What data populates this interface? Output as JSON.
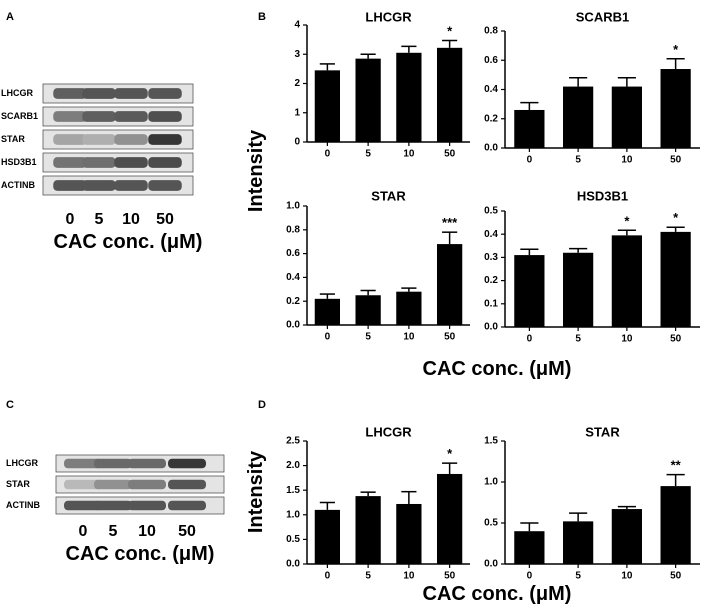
{
  "panels": {
    "A": "A",
    "B": "B",
    "C": "C",
    "D": "D"
  },
  "blots": [
    {
      "lanes": [
        "0",
        "5",
        "10",
        "50"
      ],
      "xlabel": "CAC conc. (μM)",
      "rows": [
        {
          "label": "LHCGR",
          "intensity": [
            0.7,
            0.75,
            0.75,
            0.75
          ]
        },
        {
          "label": "SCARB1",
          "intensity": [
            0.55,
            0.7,
            0.72,
            0.78
          ]
        },
        {
          "label": "STAR",
          "intensity": [
            0.35,
            0.3,
            0.45,
            0.9
          ]
        },
        {
          "label": "HSD3B1",
          "intensity": [
            0.6,
            0.62,
            0.78,
            0.8
          ]
        },
        {
          "label": "ACTINB",
          "intensity": [
            0.75,
            0.75,
            0.75,
            0.75
          ]
        }
      ]
    },
    {
      "lanes": [
        "0",
        "5",
        "10",
        "50"
      ],
      "xlabel": "CAC conc. (μM)",
      "rows": [
        {
          "label": "LHCGR",
          "intensity": [
            0.55,
            0.65,
            0.65,
            0.9
          ]
        },
        {
          "label": "STAR",
          "intensity": [
            0.25,
            0.45,
            0.55,
            0.75
          ]
        },
        {
          "label": "ACTINB",
          "intensity": [
            0.75,
            0.75,
            0.75,
            0.75
          ]
        }
      ]
    }
  ],
  "shared_labels": {
    "ylabel_top": "Intensity",
    "ylabel_bottom": "Intensity",
    "xlabel_top": "CAC conc. (μM)",
    "xlabel_bottom": "CAC conc. (μM)"
  },
  "chart_data": [
    {
      "type": "bar",
      "title": "LHCGR",
      "categories": [
        "0",
        "5",
        "10",
        "50"
      ],
      "values": [
        2.45,
        2.85,
        3.05,
        3.22
      ],
      "errors": [
        0.22,
        0.15,
        0.22,
        0.25
      ],
      "significance": [
        "",
        "",
        "",
        "*"
      ],
      "ylim": [
        0,
        4
      ],
      "yticks": [
        0,
        1,
        2,
        3,
        4
      ],
      "ytick_labels": [
        "0",
        "1",
        "2",
        "3",
        "4"
      ]
    },
    {
      "type": "bar",
      "title": "SCARB1",
      "categories": [
        "0",
        "5",
        "10",
        "50"
      ],
      "values": [
        0.26,
        0.42,
        0.42,
        0.54
      ],
      "errors": [
        0.05,
        0.06,
        0.06,
        0.07
      ],
      "significance": [
        "",
        "",
        "",
        "*"
      ],
      "ylim": [
        0,
        0.8
      ],
      "yticks": [
        0,
        0.2,
        0.4,
        0.6,
        0.8
      ],
      "ytick_labels": [
        "0.0",
        "0.2",
        "0.4",
        "0.6",
        "0.8"
      ]
    },
    {
      "type": "bar",
      "title": "STAR",
      "categories": [
        "0",
        "5",
        "10",
        "50"
      ],
      "values": [
        0.22,
        0.25,
        0.28,
        0.68
      ],
      "errors": [
        0.04,
        0.04,
        0.03,
        0.1
      ],
      "significance": [
        "",
        "",
        "",
        "***"
      ],
      "ylim": [
        0,
        1.0
      ],
      "yticks": [
        0,
        0.2,
        0.4,
        0.6,
        0.8,
        1.0
      ],
      "ytick_labels": [
        "0.0",
        "0.2",
        "0.4",
        "0.6",
        "0.8",
        "1.0"
      ]
    },
    {
      "type": "bar",
      "title": "HSD3B1",
      "categories": [
        "0",
        "5",
        "10",
        "50"
      ],
      "values": [
        0.31,
        0.32,
        0.395,
        0.41
      ],
      "errors": [
        0.025,
        0.018,
        0.022,
        0.02
      ],
      "significance": [
        "",
        "",
        "*",
        "*"
      ],
      "ylim": [
        0,
        0.5
      ],
      "yticks": [
        0,
        0.1,
        0.2,
        0.3,
        0.4,
        0.5
      ],
      "ytick_labels": [
        "0.0",
        "0.1",
        "0.2",
        "0.3",
        "0.4",
        "0.5"
      ]
    },
    {
      "type": "bar",
      "title": "LHCGR",
      "categories": [
        "0",
        "5",
        "10",
        "50"
      ],
      "values": [
        1.1,
        1.38,
        1.22,
        1.83
      ],
      "errors": [
        0.15,
        0.08,
        0.25,
        0.22
      ],
      "significance": [
        "",
        "",
        "",
        "*"
      ],
      "ylim": [
        0,
        2.5
      ],
      "yticks": [
        0,
        0.5,
        1.0,
        1.5,
        2.0,
        2.5
      ],
      "ytick_labels": [
        "0.0",
        "0.5",
        "1.0",
        "1.5",
        "2.0",
        "2.5"
      ]
    },
    {
      "type": "bar",
      "title": "STAR",
      "categories": [
        "0",
        "5",
        "10",
        "50"
      ],
      "values": [
        0.4,
        0.52,
        0.67,
        0.95
      ],
      "errors": [
        0.1,
        0.1,
        0.03,
        0.14
      ],
      "significance": [
        "",
        "",
        "",
        "**"
      ],
      "ylim": [
        0,
        1.5
      ],
      "yticks": [
        0,
        0.5,
        1.0,
        1.5
      ],
      "ytick_labels": [
        "0.0",
        "0.5",
        "1.0",
        "1.5"
      ]
    }
  ]
}
